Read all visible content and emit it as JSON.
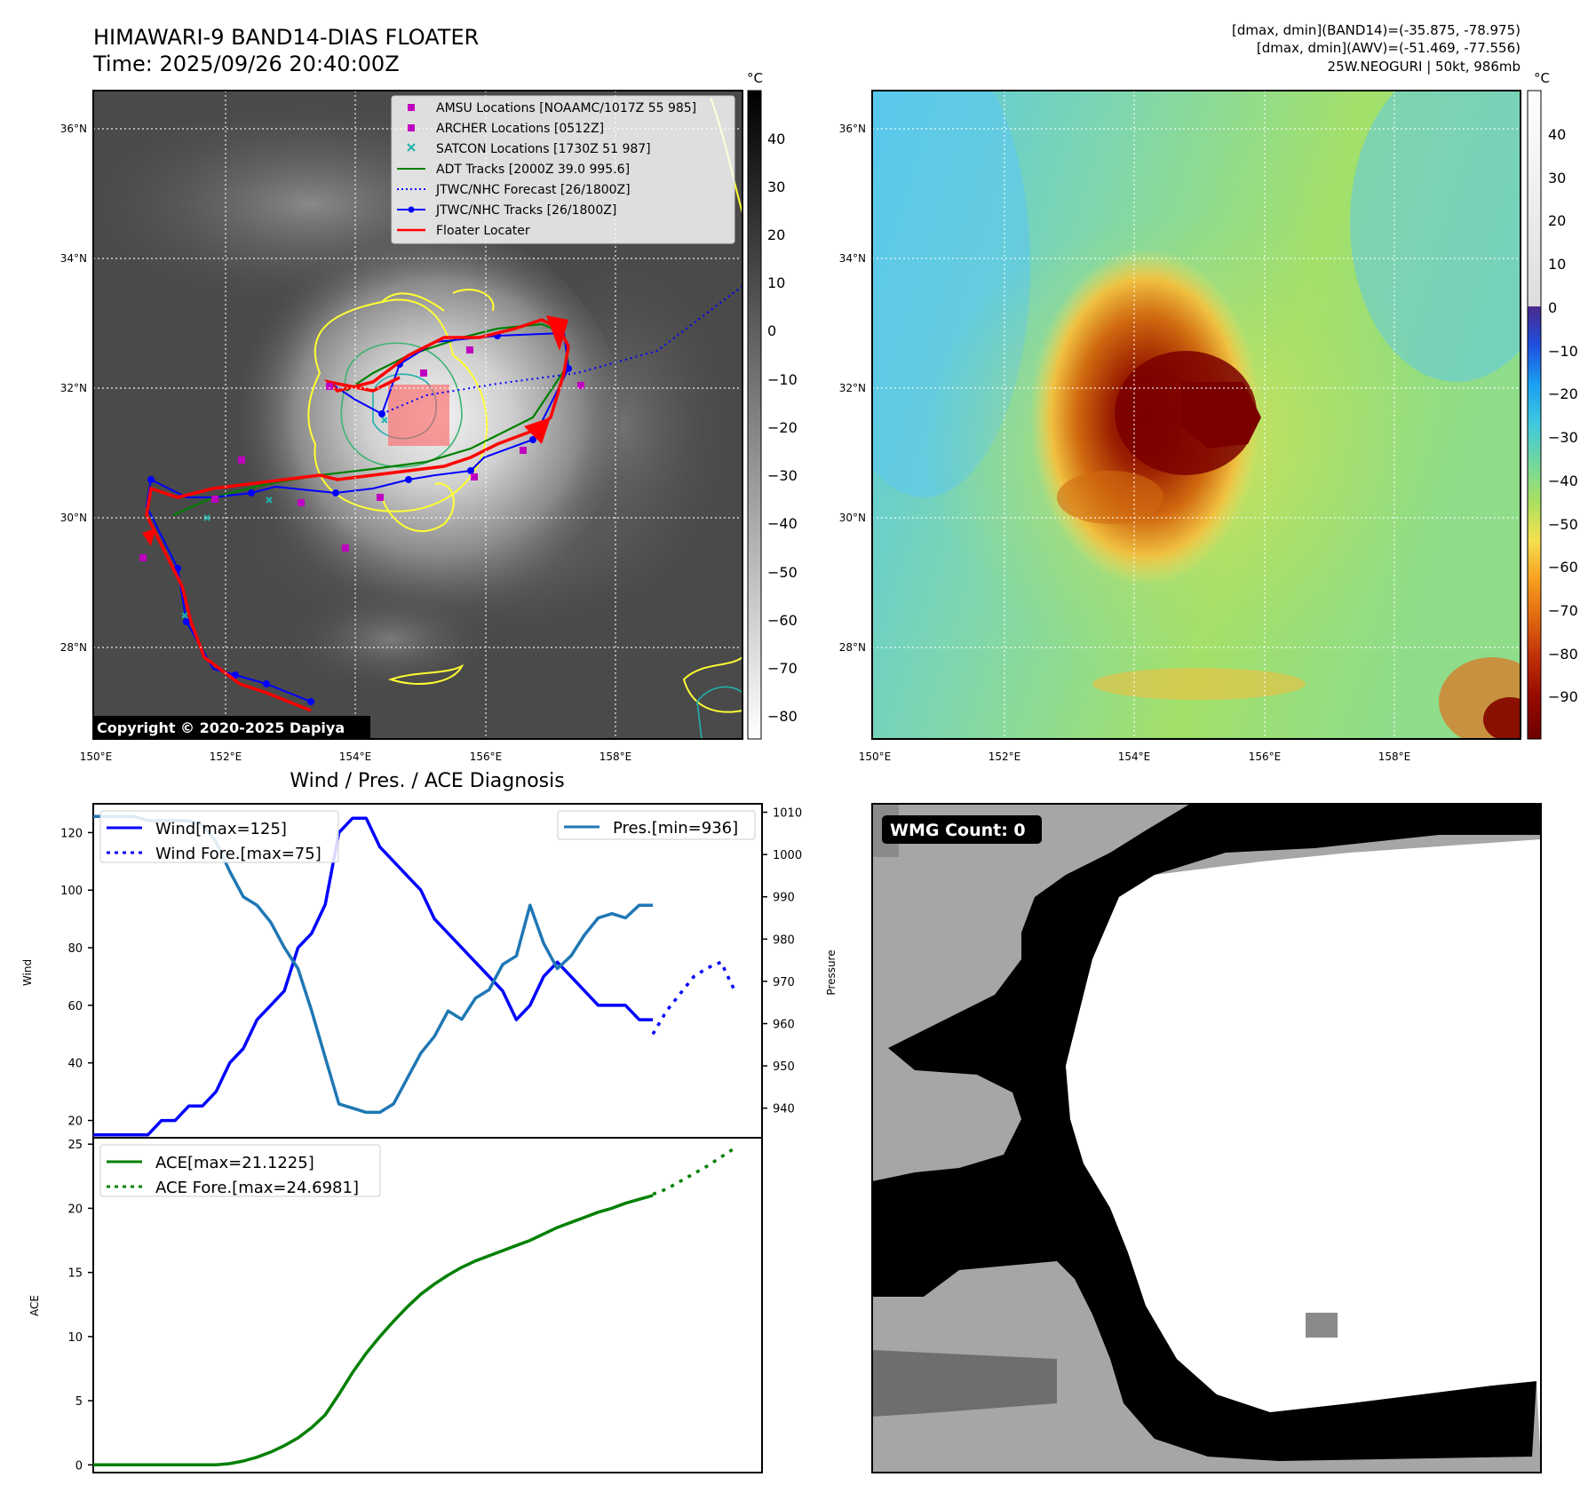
{
  "header": {
    "title_line1": "HIMAWARI-9 BAND14-DIAS FLOATER",
    "title_line2": "Time: 2025/09/26 20:40:00Z",
    "info_line1": "[dmax, dmin](BAND14)=(-35.875, -78.975)",
    "info_line2": "[dmax, dmin](AWV)=(-51.469, -77.556)",
    "info_line3": "25W.NEOGURI | 50kt, 986mb"
  },
  "ir_panel": {
    "copyright": "Copyright © 2020-2025 Dapiya",
    "colorbar_unit": "°C",
    "colorbar_ticks": [
      "40",
      "30",
      "20",
      "10",
      "0",
      "−10",
      "−20",
      "−30",
      "−40",
      "−50",
      "−60",
      "−70",
      "−80"
    ],
    "lat_labels": [
      "36°N",
      "34°N",
      "32°N",
      "30°N",
      "28°N"
    ],
    "lon_labels": [
      "150°E",
      "152°E",
      "154°E",
      "156°E",
      "158°E"
    ],
    "legend": [
      {
        "label": "AMSU Locations [NOAAMC/1017Z 55 985]",
        "color": "#bf00bf",
        "marker": "square"
      },
      {
        "label": "ARCHER Locations [0512Z]",
        "color": "#bf00bf",
        "marker": "square"
      },
      {
        "label": "SATCON Locations [1730Z 51 987]",
        "color": "#20b2aa",
        "marker": "x"
      },
      {
        "label": "ADT Tracks [2000Z 39.0 995.6]",
        "color": "#008000",
        "marker": "line"
      },
      {
        "label": "JTWC/NHC Forecast [26/1800Z]",
        "color": "#0000ff",
        "marker": "dotted"
      },
      {
        "label": "JTWC/NHC Tracks [26/1800Z]",
        "color": "#0000ff",
        "marker": "line-dot"
      },
      {
        "label": "Floater Locater",
        "color": "#ff0000",
        "marker": "line"
      }
    ]
  },
  "awv_panel": {
    "colorbar_unit": "°C",
    "colorbar_ticks": [
      "40",
      "30",
      "20",
      "10",
      "0",
      "−10",
      "−20",
      "−30",
      "−40",
      "−50",
      "−60",
      "−70",
      "−80",
      "−90"
    ],
    "lat_labels": [
      "36°N",
      "34°N",
      "32°N",
      "30°N",
      "28°N"
    ],
    "lon_labels": [
      "150°E",
      "152°E",
      "154°E",
      "156°E",
      "158°E"
    ]
  },
  "wmg_panel": {
    "label": "WMG Count: 0"
  },
  "chart_data": [
    {
      "type": "line",
      "title": "Wind / Pres. / ACE Diagnosis",
      "ylabel": "Wind",
      "y2label": "Pressure",
      "ylim": [
        14,
        130
      ],
      "y2lim": [
        933,
        1012
      ],
      "yticks": [
        20,
        40,
        60,
        80,
        100,
        120
      ],
      "y2ticks": [
        940,
        950,
        960,
        970,
        980,
        990,
        1000,
        1010
      ],
      "x": [
        0,
        1,
        2,
        3,
        4,
        5,
        6,
        7,
        8,
        9,
        10,
        11,
        12,
        13,
        14,
        15,
        16,
        17,
        18,
        19,
        20,
        21,
        22,
        23,
        24,
        25,
        26,
        27,
        28,
        29,
        30,
        31,
        32,
        33,
        34,
        35,
        36,
        37,
        38,
        39,
        40,
        41
      ],
      "series": [
        {
          "name": "Wind[max=125]",
          "color": "#0000ff",
          "style": "solid",
          "values": [
            15,
            15,
            15,
            15,
            15,
            20,
            20,
            25,
            25,
            30,
            40,
            45,
            55,
            60,
            65,
            80,
            85,
            95,
            120,
            125,
            125,
            115,
            110,
            105,
            100,
            90,
            85,
            80,
            75,
            70,
            65,
            55,
            60,
            70,
            75,
            70,
            65,
            60,
            60,
            60,
            55,
            55
          ]
        },
        {
          "name": "Wind Fore.[max=75]",
          "color": "#0000ff",
          "style": "dotted",
          "x": [
            41,
            42,
            43,
            44,
            45,
            46,
            47
          ],
          "values": [
            50,
            58,
            64,
            70,
            73,
            75,
            65
          ]
        },
        {
          "name": "Pres.[min=936]",
          "color": "#1f77b4",
          "style": "solid",
          "axis": "y2",
          "values": [
            1009,
            1009,
            1009,
            1009,
            1008,
            1008,
            1008,
            1008,
            1007,
            1003,
            996,
            990,
            988,
            984,
            978,
            973,
            963,
            952,
            941,
            940,
            939,
            939,
            941,
            947,
            953,
            957,
            963,
            961,
            966,
            968,
            974,
            976,
            988,
            979,
            973,
            976,
            981,
            985,
            986,
            985,
            988,
            988
          ]
        }
      ]
    },
    {
      "type": "line",
      "ylabel": "ACE",
      "ylim": [
        -0.6,
        25.5
      ],
      "yticks": [
        0,
        5,
        10,
        15,
        20,
        25
      ],
      "x": [
        0,
        1,
        2,
        3,
        4,
        5,
        6,
        7,
        8,
        9,
        10,
        11,
        12,
        13,
        14,
        15,
        16,
        17,
        18,
        19,
        20,
        21,
        22,
        23,
        24,
        25,
        26,
        27,
        28,
        29,
        30,
        31,
        32,
        33,
        34,
        35,
        36,
        37,
        38,
        39,
        40,
        41
      ],
      "series": [
        {
          "name": "ACE[max=21.1225]",
          "color": "#008000",
          "style": "solid",
          "values": [
            0,
            0,
            0,
            0,
            0,
            0,
            0,
            0,
            0,
            0,
            0.1,
            0.3,
            0.6,
            1.0,
            1.5,
            2.1,
            2.9,
            3.9,
            5.5,
            7.2,
            8.7,
            10.0,
            11.2,
            12.3,
            13.3,
            14.1,
            14.8,
            15.4,
            15.9,
            16.3,
            16.7,
            17.1,
            17.5,
            18.0,
            18.5,
            18.9,
            19.3,
            19.7,
            20.0,
            20.4,
            20.7,
            21.0
          ]
        },
        {
          "name": "ACE Fore.[max=24.6981]",
          "color": "#008000",
          "style": "dotted",
          "x": [
            41,
            42,
            43,
            44,
            45,
            46,
            47
          ],
          "values": [
            21.1,
            21.5,
            22.1,
            22.7,
            23.3,
            24.0,
            24.7
          ]
        }
      ]
    }
  ]
}
